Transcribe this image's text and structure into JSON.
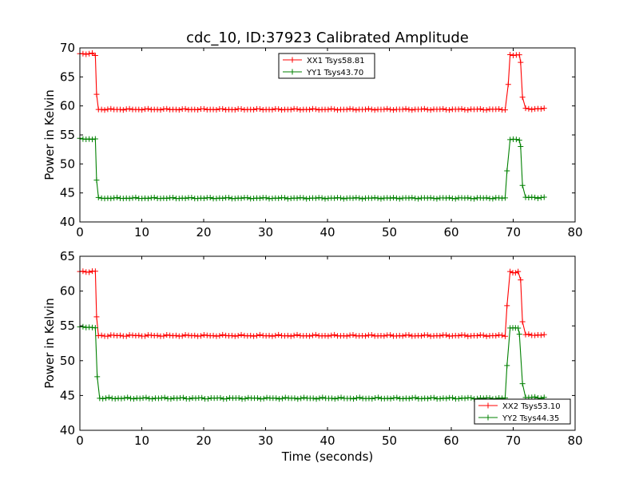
{
  "chart_data": [
    {
      "type": "line",
      "title": "cdc_10, ID:37923 Calibrated Amplitude",
      "xlabel": "",
      "ylabel": "Power in Kelvin",
      "xlim": [
        0,
        80
      ],
      "ylim": [
        40,
        70
      ],
      "xticks": [
        0,
        10,
        20,
        30,
        40,
        50,
        60,
        70,
        80
      ],
      "yticks": [
        40,
        45,
        50,
        55,
        60,
        65,
        70
      ],
      "legend_position": "top-center",
      "series": [
        {
          "name": "XX1 Tsys58.81",
          "color": "#ff0000",
          "marker": "plus",
          "segments": [
            {
              "x0": 0,
              "x1": 2.0,
              "level": 69.0
            },
            {
              "x0": 2.5,
              "x1": 2.5,
              "level": 68.7
            },
            {
              "x0": 3.0,
              "x1": 68.7,
              "level": 59.4
            },
            {
              "x0": 69.2,
              "x1": 69.2,
              "level": 63.7
            },
            {
              "x0": 69.5,
              "x1": 71.0,
              "level": 68.8
            },
            {
              "x0": 71.2,
              "x1": 71.2,
              "level": 67.5
            },
            {
              "x0": 71.5,
              "x1": 71.5,
              "level": 61.5
            },
            {
              "x0": 72.0,
              "x1": 75.0,
              "level": 59.5
            }
          ],
          "transitions": [
            [
              2.7,
              62.0
            ]
          ]
        },
        {
          "name": "YY1 Tsys43.70",
          "color": "#008000",
          "marker": "plus",
          "segments": [
            {
              "x0": 0,
              "x1": 2.5,
              "level": 54.3
            },
            {
              "x0": 3.0,
              "x1": 68.7,
              "level": 44.1
            },
            {
              "x0": 69.0,
              "x1": 69.0,
              "level": 48.8
            },
            {
              "x0": 69.5,
              "x1": 71.0,
              "level": 54.2
            },
            {
              "x0": 71.2,
              "x1": 71.2,
              "level": 53.0
            },
            {
              "x0": 71.5,
              "x1": 71.5,
              "level": 46.3
            },
            {
              "x0": 72.0,
              "x1": 75.0,
              "level": 44.2
            }
          ],
          "transitions": [
            [
              2.7,
              47.2
            ]
          ]
        }
      ]
    },
    {
      "type": "line",
      "title": "",
      "xlabel": "Time (seconds)",
      "ylabel": "Power in Kelvin",
      "xlim": [
        0,
        80
      ],
      "ylim": [
        40,
        65
      ],
      "xticks": [
        0,
        10,
        20,
        30,
        40,
        50,
        60,
        70,
        80
      ],
      "yticks": [
        40,
        45,
        50,
        55,
        60,
        65
      ],
      "legend_position": "bottom-right",
      "series": [
        {
          "name": "XX2 Tsys53.10",
          "color": "#ff0000",
          "marker": "plus",
          "segments": [
            {
              "x0": 0,
              "x1": 2.5,
              "level": 62.8
            },
            {
              "x0": 2.7,
              "x1": 2.7,
              "level": 56.3
            },
            {
              "x0": 3.0,
              "x1": 68.7,
              "level": 53.6
            },
            {
              "x0": 69.0,
              "x1": 69.0,
              "level": 57.9
            },
            {
              "x0": 69.5,
              "x1": 70.8,
              "level": 62.7
            },
            {
              "x0": 71.2,
              "x1": 71.2,
              "level": 61.6
            },
            {
              "x0": 71.5,
              "x1": 71.5,
              "level": 55.6
            },
            {
              "x0": 72.0,
              "x1": 75.0,
              "level": 53.7
            }
          ],
          "transitions": []
        },
        {
          "name": "YY2 Tsys44.35",
          "color": "#008000",
          "marker": "plus",
          "segments": [
            {
              "x0": 0,
              "x1": 2.5,
              "level": 54.8
            },
            {
              "x0": 2.8,
              "x1": 2.8,
              "level": 47.7
            },
            {
              "x0": 3.2,
              "x1": 68.7,
              "level": 44.6
            },
            {
              "x0": 69.0,
              "x1": 69.0,
              "level": 49.3
            },
            {
              "x0": 69.5,
              "x1": 70.8,
              "level": 54.7
            },
            {
              "x0": 71.0,
              "x1": 71.0,
              "level": 53.8
            },
            {
              "x0": 71.5,
              "x1": 71.5,
              "level": 46.7
            },
            {
              "x0": 72.0,
              "x1": 75.0,
              "level": 44.7
            }
          ],
          "transitions": []
        }
      ]
    }
  ]
}
